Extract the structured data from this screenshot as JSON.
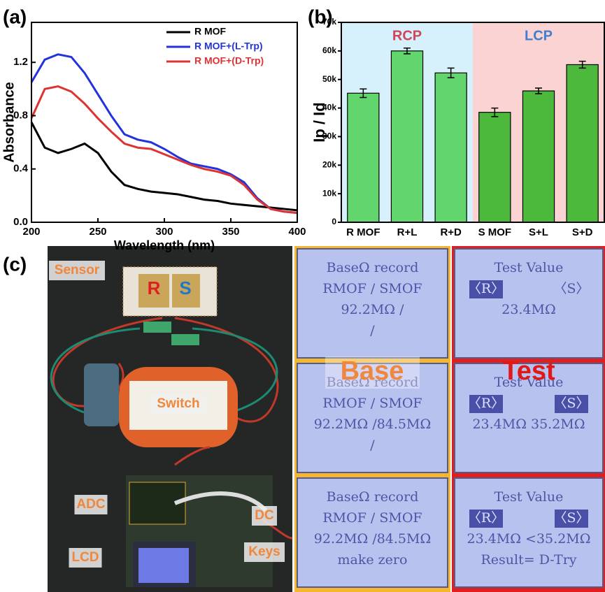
{
  "chart_data": [
    {
      "type": "line",
      "panel_label": "(a)",
      "x_label": "Wavelength (nm)",
      "y_label": "Absorbance",
      "x": [
        200,
        210,
        220,
        230,
        240,
        250,
        260,
        270,
        280,
        290,
        300,
        310,
        320,
        330,
        340,
        350,
        360,
        370,
        380,
        390,
        400
      ],
      "series": [
        {
          "name": "R MOF",
          "color": "#000000",
          "values": [
            0.75,
            0.56,
            0.52,
            0.55,
            0.59,
            0.52,
            0.38,
            0.28,
            0.25,
            0.23,
            0.22,
            0.21,
            0.19,
            0.17,
            0.16,
            0.14,
            0.13,
            0.12,
            0.11,
            0.1,
            0.09
          ]
        },
        {
          "name": "R MOF+(L-Trp)",
          "color": "#2233dd",
          "values": [
            1.05,
            1.22,
            1.26,
            1.24,
            1.12,
            0.96,
            0.8,
            0.66,
            0.62,
            0.6,
            0.55,
            0.49,
            0.44,
            0.42,
            0.4,
            0.36,
            0.3,
            0.18,
            0.1,
            0.08,
            0.07
          ]
        },
        {
          "name": "R MOF+(D-Trp)",
          "color": "#dd3333",
          "values": [
            0.78,
            1.0,
            1.02,
            0.98,
            0.89,
            0.78,
            0.68,
            0.59,
            0.56,
            0.55,
            0.51,
            0.47,
            0.43,
            0.4,
            0.38,
            0.35,
            0.28,
            0.17,
            0.1,
            0.08,
            0.07
          ]
        }
      ],
      "xlim": [
        200,
        400
      ],
      "xticks": [
        200,
        250,
        300,
        350,
        400
      ],
      "ylim": [
        0,
        1.5
      ],
      "yticks": [
        {
          "value": 0,
          "label": "0.0"
        },
        0.4,
        0.8,
        1.2
      ]
    },
    {
      "type": "bar",
      "panel_label": "(b)",
      "y_label": "Ip / Id",
      "categories": [
        "R MOF",
        "R+L",
        "R+D",
        "S MOF",
        "S+L",
        "S+D"
      ],
      "values": [
        45200,
        60000,
        52300,
        38500,
        46000,
        55200
      ],
      "errors": [
        1500,
        1000,
        1700,
        1500,
        1000,
        1200
      ],
      "colors": [
        "#62d66c",
        "#62d66c",
        "#62d66c",
        "#4cb83c",
        "#4cb83c",
        "#4cb83c"
      ],
      "regions": [
        {
          "label": "RCP",
          "color": "#d6f1fb",
          "label_color": "#d0455a"
        },
        {
          "label": "LCP",
          "color": "#fbd3d3",
          "label_color": "#3f7fd0"
        }
      ],
      "ylim": [
        0,
        70000
      ],
      "yticks": [
        0,
        {
          "value": 10000,
          "label": "10k"
        },
        {
          "value": 20000,
          "label": "20k"
        },
        {
          "value": 30000,
          "label": "30k"
        },
        {
          "value": 40000,
          "label": "40k"
        },
        {
          "value": 50000,
          "label": "50k"
        },
        {
          "value": 60000,
          "label": "60k"
        },
        {
          "value": 70000,
          "label": "70k"
        }
      ]
    }
  ],
  "panel_c": {
    "label": "(c)",
    "photo_labels": {
      "sensor": "Sensor",
      "r": "R",
      "s": "S",
      "switch": "Switch",
      "adc": "ADC",
      "dc": "DC",
      "lcd": "LCD",
      "keys": "Keys"
    },
    "base_label": "Base",
    "test_label": "Test",
    "base_screens": [
      [
        [
          "BaseΩ record"
        ],
        [
          "RMOF / SMOF"
        ],
        [
          "92.2MΩ /"
        ],
        [
          "/"
        ]
      ],
      [
        [
          "BaseΩ record"
        ],
        [
          "RMOF / SMOF"
        ],
        [
          "92.2MΩ /84.5MΩ"
        ],
        [
          "/"
        ]
      ],
      [
        [
          "BaseΩ record"
        ],
        [
          "RMOF / SMOF"
        ],
        [
          "92.2MΩ /84.5MΩ"
        ],
        [
          "make zero"
        ]
      ]
    ],
    "test_screens": [
      [
        [
          "Test Value"
        ],
        [
          "〈R〉",
          "〈S〉"
        ],
        [
          "23.4MΩ"
        ]
      ],
      [
        [
          "Test Value"
        ],
        [
          "〈R〉",
          "〈S〉"
        ],
        [
          "23.4MΩ  35.2MΩ"
        ]
      ],
      [
        [
          "Test Value"
        ],
        [
          "〈R〉",
          "〈S〉"
        ],
        [
          "23.4MΩ <35.2MΩ"
        ],
        [
          "Result= D-Try"
        ]
      ]
    ]
  }
}
